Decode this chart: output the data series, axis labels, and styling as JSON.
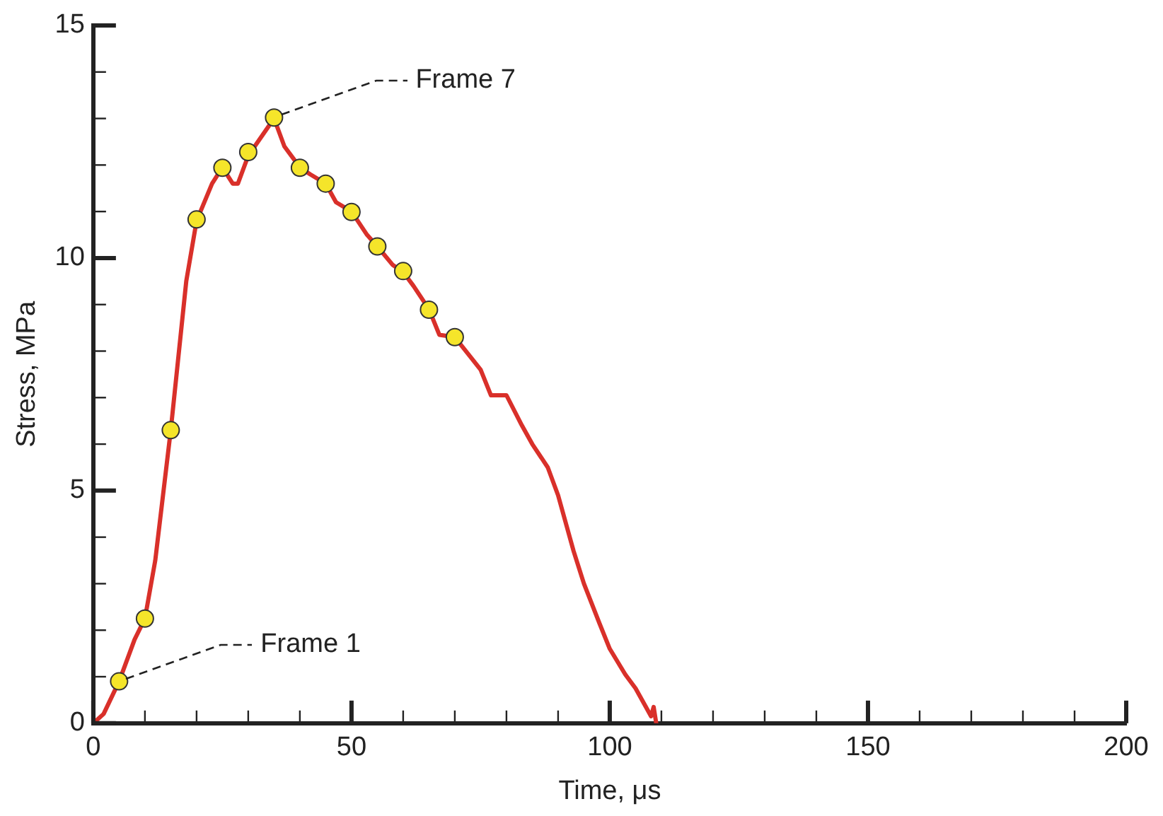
{
  "chart_data": {
    "type": "line",
    "xlabel": "Time, μs",
    "ylabel": "Stress, MPa",
    "xlim": [
      0,
      200
    ],
    "ylim": [
      0,
      15
    ],
    "xticks": [
      0,
      {
        "value": 10,
        "label": null
      },
      {
        "value": 20,
        "label": null
      },
      {
        "value": 30,
        "label": null
      },
      {
        "value": 40,
        "label": null
      },
      50,
      {
        "value": 60,
        "label": null
      },
      {
        "value": 70,
        "label": null
      },
      {
        "value": 80,
        "label": null
      },
      {
        "value": 90,
        "label": null
      },
      100,
      {
        "value": 110,
        "label": null
      },
      {
        "value": 120,
        "label": null
      },
      {
        "value": 130,
        "label": null
      },
      {
        "value": 140,
        "label": null
      },
      150,
      {
        "value": 160,
        "label": null
      },
      {
        "value": 170,
        "label": null
      },
      {
        "value": 180,
        "label": null
      },
      {
        "value": 190,
        "label": null
      },
      200
    ],
    "yticks": [
      0,
      {
        "value": 1,
        "label": null
      },
      {
        "value": 2,
        "label": null
      },
      {
        "value": 3,
        "label": null
      },
      {
        "value": 4,
        "label": null
      },
      5,
      {
        "value": 6,
        "label": null
      },
      {
        "value": 7,
        "label": null
      },
      {
        "value": 8,
        "label": null
      },
      {
        "value": 9,
        "label": null
      },
      10,
      {
        "value": 11,
        "label": null
      },
      {
        "value": 12,
        "label": null
      },
      {
        "value": 13,
        "label": null
      },
      {
        "value": 14,
        "label": null
      },
      15
    ],
    "grid": false,
    "legend": false,
    "series": [
      {
        "color": "#d9302a",
        "marker": "none",
        "line_style": "solid",
        "x": [
          0,
          2,
          5,
          8,
          10,
          12,
          15,
          18,
          20,
          23,
          25,
          27,
          28,
          30,
          35,
          37,
          40,
          42,
          45,
          47,
          50,
          53,
          55,
          58,
          60,
          62,
          65,
          67,
          70,
          75,
          77,
          80,
          83,
          85,
          88,
          90,
          93,
          95,
          98,
          100,
          103,
          105,
          107,
          108,
          108.5,
          109
        ],
        "values": [
          0,
          0.2,
          0.9,
          1.8,
          2.25,
          3.5,
          6.3,
          9.5,
          10.8,
          11.6,
          11.95,
          11.6,
          11.6,
          12.2,
          13.0,
          12.4,
          11.95,
          11.8,
          11.6,
          11.2,
          11.0,
          10.5,
          10.25,
          9.85,
          9.7,
          9.4,
          8.9,
          8.35,
          8.3,
          7.6,
          7.05,
          7.05,
          6.4,
          6.0,
          5.5,
          4.9,
          3.7,
          3.0,
          2.15,
          1.6,
          1.05,
          0.75,
          0.35,
          0.15,
          0.35,
          0
        ]
      },
      {
        "type": "scatter",
        "color": "#f5e52a",
        "marker": "circle",
        "x": [
          5,
          10,
          15,
          20,
          25,
          30,
          35,
          40,
          45,
          50,
          55,
          60,
          65,
          70
        ],
        "values": [
          0.9,
          2.25,
          6.3,
          10.83,
          11.94,
          12.28,
          13.02,
          11.94,
          11.6,
          10.99,
          10.25,
          9.72,
          8.89,
          8.3
        ]
      }
    ],
    "annotations": [
      {
        "text": "Frame 7",
        "x": 35,
        "y": 13.02
      },
      {
        "text": "Frame 1",
        "x": 5,
        "y": 0.9
      }
    ]
  }
}
